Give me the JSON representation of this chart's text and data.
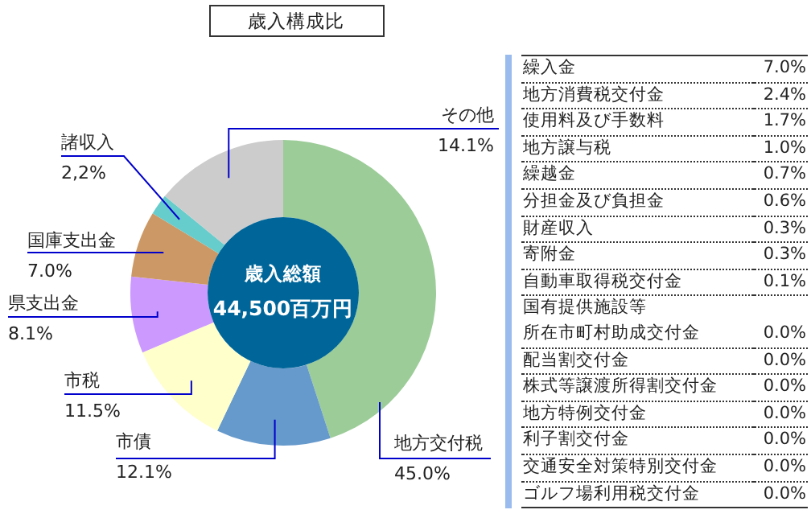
{
  "chart_data": [
    {
      "type": "donut",
      "title": "歳入構成比",
      "categories": [
        "地方交付税",
        "市債",
        "市税",
        "県支出金",
        "国庫支出金",
        "諸収入",
        "その他"
      ],
      "values": [
        45.0,
        12.1,
        11.5,
        8.1,
        7.0,
        2.2,
        14.1
      ],
      "colors": [
        "#9ccc98",
        "#6699cc",
        "#ffffcc",
        "#cc99ff",
        "#cc9966",
        "#66cccc",
        "#cccccc"
      ],
      "value_labels": [
        "45.0%",
        "12.1%",
        "11.5%",
        "8.1%",
        "7.0%",
        "2,2%",
        "14.1%"
      ],
      "annotations": [
        "歳入総額",
        "44,500百万円"
      ]
    },
    {
      "type": "other",
      "categories": [
        "繰入金",
        "地方消費税交付金",
        "使用料及び手数料",
        "地方譲与税",
        "繰越金",
        "分担金及び負担金",
        "財産収入",
        "寄附金",
        "自動車取得税交付金",
        "国有提供施設等",
        "所在市町村助成交付金",
        "配当割交付金",
        "株式等譲渡所得割交付金",
        "地方特例交付金",
        "利子割交付金",
        "交通安全対策特別交付金",
        "ゴルフ場利用税交付金"
      ],
      "value_labels": [
        "7.0%",
        "2.4%",
        "1.7%",
        "1.0%",
        "0.7%",
        "0.6%",
        "0.3%",
        "0.3%",
        "0.1%",
        null,
        "0.0%",
        "0.0%",
        "0.0%",
        "0.0%",
        "0.0%",
        "0.0%",
        "0.0%"
      ]
    }
  ]
}
